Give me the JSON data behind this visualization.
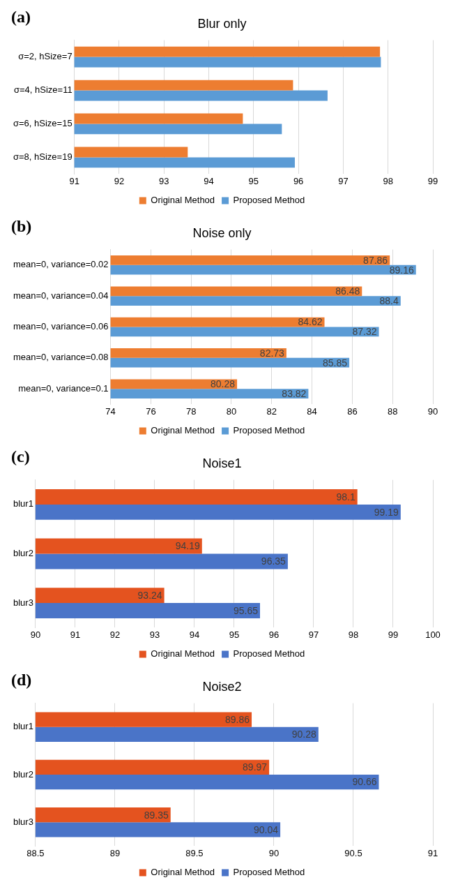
{
  "chart_data": [
    {
      "type": "bar",
      "orientation": "horizontal",
      "title": "Blur only",
      "annotations": [
        "(a)"
      ],
      "categories": [
        "σ=2, hSize=7",
        "σ=4, hSize=11",
        "σ=6, hSize=15",
        "σ=8, hSize=19"
      ],
      "series": [
        {
          "name": "Original Method",
          "color": "#ed7d31",
          "values": [
            97.82,
            95.88,
            94.76,
            93.53
          ]
        },
        {
          "name": "Proposed Method",
          "color": "#5b9bd5",
          "values": [
            97.84,
            96.65,
            95.63,
            95.92
          ]
        }
      ],
      "xlim": [
        91,
        99
      ],
      "xticks": [
        91,
        92,
        93,
        94,
        95,
        96,
        97,
        98,
        99
      ],
      "grid": "x",
      "legend": "bottom"
    },
    {
      "type": "bar",
      "orientation": "horizontal",
      "title": "Noise only",
      "annotations": [
        "(b)"
      ],
      "categories": [
        "mean=0, variance=0.02",
        "mean=0, variance=0.04",
        "mean=0, variance=0.06",
        "mean=0, variance=0.08",
        "mean=0, variance=0.1"
      ],
      "series": [
        {
          "name": "Original Method",
          "color": "#ed7d31",
          "values": [
            87.86,
            86.48,
            84.62,
            82.73,
            80.28
          ]
        },
        {
          "name": "Proposed Method",
          "color": "#5b9bd5",
          "values": [
            89.16,
            88.4,
            87.32,
            85.85,
            83.82
          ]
        }
      ],
      "xlim": [
        74,
        90
      ],
      "xticks": [
        74,
        76,
        78,
        80,
        82,
        84,
        86,
        88,
        90
      ],
      "grid": "x",
      "legend": "bottom",
      "data_labels": true
    },
    {
      "type": "bar",
      "orientation": "horizontal",
      "title": "Noise1",
      "annotations": [
        "(c)"
      ],
      "categories": [
        "blur1",
        "blur2",
        "blur3"
      ],
      "series": [
        {
          "name": "Original Method",
          "color": "#e4531f",
          "values": [
            98.1,
            94.19,
            93.24
          ]
        },
        {
          "name": "Proposed Method",
          "color": "#4a74c8",
          "values": [
            99.19,
            96.35,
            95.65
          ]
        }
      ],
      "xlim": [
        90,
        100
      ],
      "xticks": [
        90,
        91,
        92,
        93,
        94,
        95,
        96,
        97,
        98,
        99,
        100
      ],
      "grid": "x",
      "legend": "bottom",
      "data_labels": true
    },
    {
      "type": "bar",
      "orientation": "horizontal",
      "title": "Noise2",
      "annotations": [
        "(d)"
      ],
      "categories": [
        "blur1",
        "blur2",
        "blur3"
      ],
      "series": [
        {
          "name": "Original Method",
          "color": "#e4531f",
          "values": [
            89.86,
            89.97,
            89.35
          ]
        },
        {
          "name": "Proposed Method",
          "color": "#4a74c8",
          "values": [
            90.28,
            90.66,
            90.04
          ]
        }
      ],
      "xlim": [
        88.5,
        91
      ],
      "xticks": [
        88.5,
        89,
        89.5,
        90,
        90.5,
        91
      ],
      "grid": "x",
      "legend": "bottom",
      "data_labels": true
    }
  ]
}
